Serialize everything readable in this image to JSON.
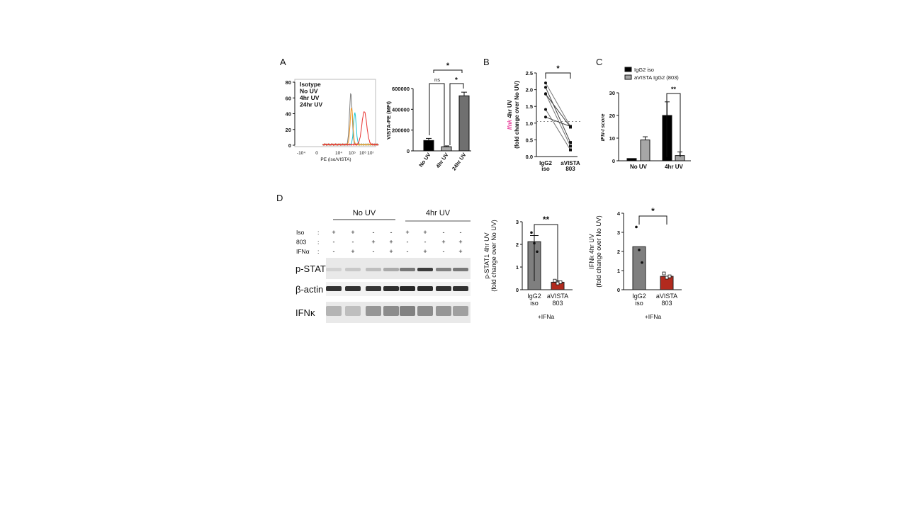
{
  "panel_labels": {
    "a": "A",
    "b": "B",
    "c": "C",
    "d": "D"
  },
  "chart_data": [
    {
      "id": "A_histogram",
      "type": "line",
      "xlabel": "PE (iso/VISTA)",
      "x_ticks": [
        "-10⁴",
        "0",
        "10⁴",
        "10⁵",
        "10⁶",
        "10⁷"
      ],
      "y_ticks": [
        "0",
        "20",
        "40",
        "60",
        "80"
      ],
      "ylim": [
        0,
        80
      ],
      "legend": [
        {
          "name": "Isotype",
          "color": "#808080"
        },
        {
          "name": "No UV",
          "color": "#1cc6d2"
        },
        {
          "name": "4hr UV",
          "color": "#f59a23"
        },
        {
          "name": "24hr UV",
          "color": "#e8312f"
        }
      ],
      "peaks": [
        {
          "name": "Isotype",
          "center_log": 4.9,
          "height": 65
        },
        {
          "name": "No UV",
          "center_log": 5.2,
          "height": 40
        },
        {
          "name": "4hr UV",
          "center_log": 4.95,
          "height": 47
        },
        {
          "name": "24hr UV",
          "center_log": 5.9,
          "height": 42
        }
      ]
    },
    {
      "id": "A_bar",
      "type": "bar",
      "ylabel": "VISTA-PE (MFI)",
      "categories": [
        "No UV",
        "4hr UV",
        "24hr UV"
      ],
      "values": [
        100000,
        40000,
        530000
      ],
      "errors": [
        20000,
        8000,
        35000
      ],
      "colors": [
        "#000000",
        "#aaaaaa",
        "#707070"
      ],
      "y_ticks": [
        "0",
        "200000",
        "400000",
        "600000"
      ],
      "ylim": [
        0,
        600000
      ],
      "significance": [
        {
          "from": 0,
          "to": 2,
          "label": "*"
        },
        {
          "from": 0,
          "to": 1,
          "label": "ns"
        },
        {
          "from": 1,
          "to": 2,
          "label": "*"
        }
      ]
    },
    {
      "id": "B_paired",
      "type": "scatter",
      "ylabel_italic": "Ifnk",
      "ylabel_rest": " 4hr UV",
      "ylabel2": "(fold change over No UV)",
      "categories": [
        "IgG2\niso",
        "aVISTA\n803"
      ],
      "cat_lines": [
        [
          "IgG2",
          "iso"
        ],
        [
          "aVISTA",
          "803"
        ]
      ],
      "pairs": [
        [
          2.2,
          0.9
        ],
        [
          2.07,
          0.42
        ],
        [
          1.88,
          0.31
        ],
        [
          1.87,
          0.88
        ],
        [
          1.41,
          0.2
        ],
        [
          1.18,
          0.9
        ]
      ],
      "reference_line": 1.05,
      "y_ticks": [
        "0.0",
        "0.5",
        "1.0",
        "1.5",
        "2.0",
        "2.5"
      ],
      "ylim": [
        0,
        2.5
      ],
      "significance": "*"
    },
    {
      "id": "C_bar",
      "type": "bar",
      "ylabel": "IFN-I score",
      "categories": [
        "No UV",
        "4hr UV"
      ],
      "series": [
        {
          "name": "IgG2 iso",
          "color": "#000000",
          "values": [
            1,
            20
          ],
          "errors": [
            0,
            6
          ]
        },
        {
          "name": "aVISTA IgG2 (803)",
          "color": "#a6a6a6",
          "values": [
            9.2,
            2.3
          ],
          "errors": [
            1.4,
            1.6
          ]
        }
      ],
      "y_ticks": [
        "0",
        "10",
        "20",
        "30"
      ],
      "ylim": [
        0,
        30
      ],
      "significance": "**"
    },
    {
      "id": "D_pSTAT1",
      "type": "bar",
      "ylabel": "p-STAT1 4hr UV",
      "ylabel2": "(fold change over No UV)",
      "cat_lines": [
        [
          "IgG2",
          "iso"
        ],
        [
          "aVISTA",
          "803"
        ]
      ],
      "xlabel": "+IFNa",
      "values": [
        2.12,
        0.33
      ],
      "errors": [
        0.27,
        0.06
      ],
      "points": [
        [
          2.52,
          2.05,
          1.68
        ],
        [
          0.4,
          0.28,
          0.33
        ]
      ],
      "colors": [
        "#7f7f7f",
        "#b22a1e"
      ],
      "y_ticks": [
        "0",
        "1",
        "2",
        "3"
      ],
      "ylim": [
        0,
        3
      ],
      "significance": "**"
    },
    {
      "id": "D_IFNk",
      "type": "bar",
      "ylabel": "IFNk 4hr UV",
      "ylabel2": "(fold change over No UV)",
      "cat_lines": [
        [
          "IgG2",
          "iso"
        ],
        [
          "aVISTA",
          "803"
        ]
      ],
      "xlabel": "+IFNa",
      "values": [
        2.25,
        0.7
      ],
      "errors": [
        0,
        0
      ],
      "points": [
        [
          3.28,
          2.08,
          1.42
        ],
        [
          0.85,
          0.63,
          0.7
        ]
      ],
      "colors": [
        "#7f7f7f",
        "#b22a1e"
      ],
      "y_ticks": [
        "0",
        "1",
        "2",
        "3",
        "4"
      ],
      "ylim": [
        0,
        4
      ],
      "significance": "*"
    }
  ],
  "blot": {
    "groups": [
      "No UV",
      "4hr UV"
    ],
    "rows": [
      {
        "label": "Iso",
        "signs": [
          "+",
          "+",
          "-",
          "-",
          "+",
          "+",
          "-",
          "-"
        ]
      },
      {
        "label": "803",
        "signs": [
          "-",
          "-",
          "+",
          "+",
          "-",
          "-",
          "+",
          "+"
        ]
      },
      {
        "label": "IFNα",
        "signs": [
          "-",
          "+",
          "-",
          "+",
          "-",
          "+",
          "-",
          "+"
        ]
      }
    ],
    "colon": ":",
    "bands": [
      {
        "label": "p-STAT1",
        "intensity": [
          0.1,
          0.15,
          0.2,
          0.3,
          0.55,
          0.85,
          0.5,
          0.55
        ]
      },
      {
        "label": "β-actin",
        "intensity": [
          0.9,
          0.9,
          0.88,
          0.92,
          0.95,
          0.93,
          0.9,
          0.9
        ]
      },
      {
        "label": "IFNκ",
        "intensity": [
          0.25,
          0.2,
          0.4,
          0.45,
          0.5,
          0.45,
          0.4,
          0.35
        ]
      }
    ]
  }
}
